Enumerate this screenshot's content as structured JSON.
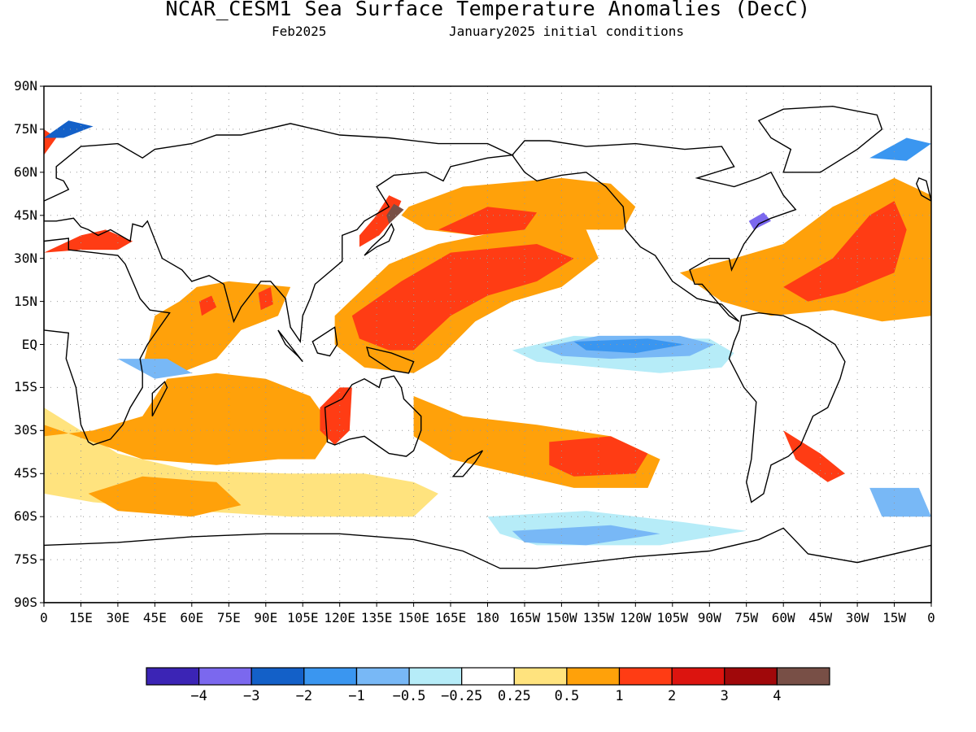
{
  "title": "NCAR_CESM1 Sea Surface Temperature Anomalies (DecC)",
  "subtitle_left": "Feb2025",
  "subtitle_right": "January2025 initial conditions",
  "lat_labels": [
    "90N",
    "75N",
    "60N",
    "45N",
    "30N",
    "15N",
    "EQ",
    "15S",
    "30S",
    "45S",
    "60S",
    "75S",
    "90S"
  ],
  "lon_labels": [
    "0",
    "15E",
    "30E",
    "45E",
    "60E",
    "75E",
    "90E",
    "105E",
    "120E",
    "135E",
    "150E",
    "165E",
    "180",
    "165W",
    "150W",
    "135W",
    "120W",
    "105W",
    "90W",
    "75W",
    "60W",
    "45W",
    "30W",
    "15W",
    "0"
  ],
  "colorbar": {
    "colors": [
      "#3b24b5",
      "#7b68ee",
      "#1360c8",
      "#3a96f0",
      "#78b8f6",
      "#b6ecf8",
      "#ffffff",
      "#ffe37e",
      "#ffa10a",
      "#ff3c14",
      "#dc140f",
      "#a0080a",
      "#784f46"
    ],
    "labels": [
      "−4",
      "−3",
      "−2",
      "−1",
      "−0.5",
      "−0.25",
      "0.25",
      "0.5",
      "1",
      "2",
      "3",
      "4"
    ]
  },
  "map_style": {
    "grid": "dotted",
    "coastline_color": "#000000",
    "region_colors": {
      "neg_025": "#b6ecf8",
      "neg_05": "#78b8f6",
      "neg_1": "#3a96f0",
      "neg_2": "#1360c8",
      "neg_3": "#7b68ee",
      "pos_025": "#ffe37e",
      "pos_05": "#ffa10a",
      "pos_1": "#ff3c14",
      "pos_2": "#dc140f",
      "pos_4": "#784f46"
    }
  }
}
